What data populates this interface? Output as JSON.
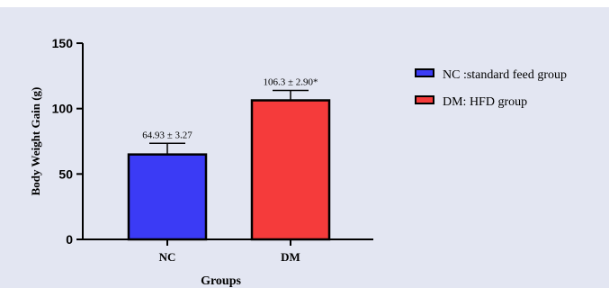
{
  "chart_data": {
    "type": "bar",
    "xlabel": "Groups",
    "ylabel": "Body Weight Gain (g)",
    "ylim": [
      0,
      150
    ],
    "yticks": [
      "0",
      "50",
      "100",
      "150"
    ],
    "categories": [
      "NC",
      "DM"
    ],
    "values": [
      64.93,
      106.3
    ],
    "errors": [
      3.27,
      2.9
    ],
    "data_labels": [
      "64.93 ± 3.27",
      "106.3 ± 2.90*"
    ],
    "colors": [
      "#3b3bf5",
      "#f53b3b"
    ],
    "legend": {
      "placement": "right",
      "entries": [
        "NC :standard feed group",
        "DM: HFD group"
      ]
    },
    "grid": false
  }
}
